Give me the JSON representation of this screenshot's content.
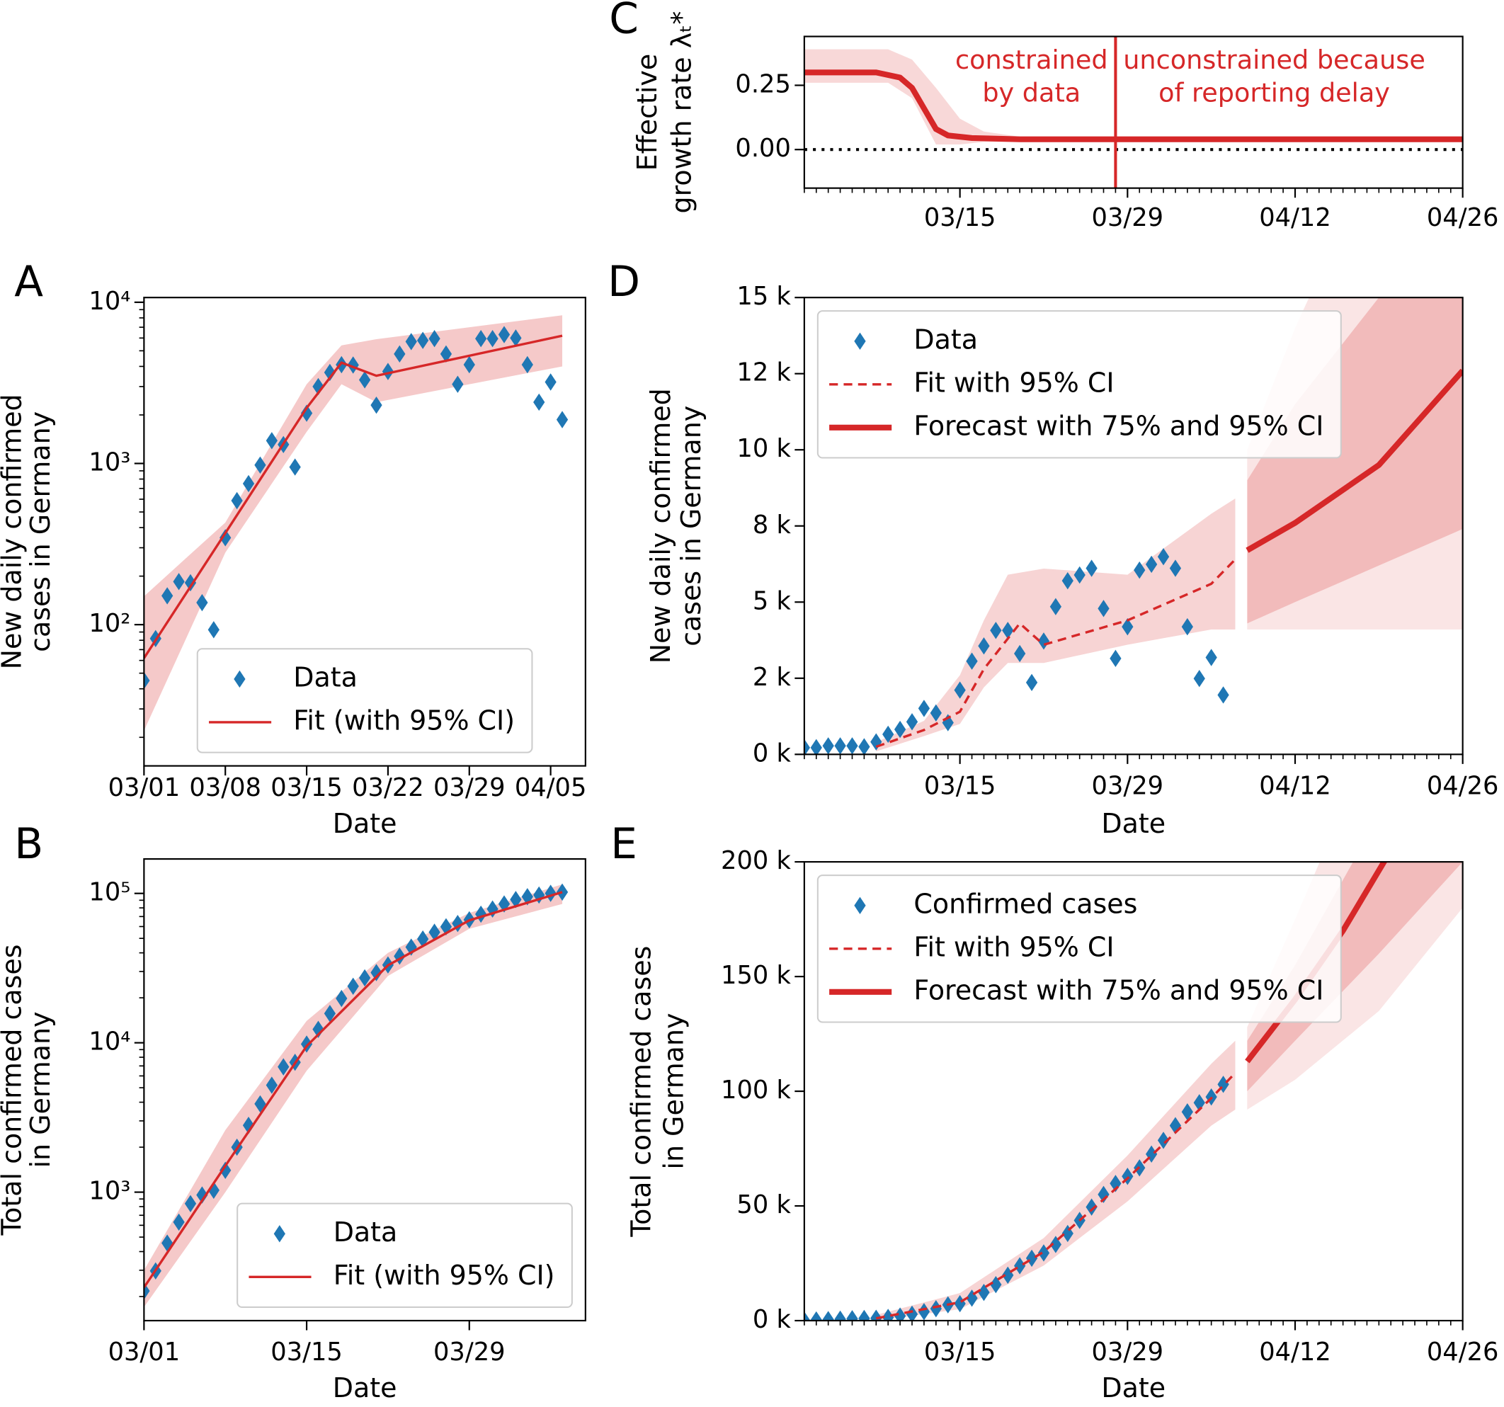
{
  "chart_data": [
    {
      "label": "A",
      "type": "line",
      "ylabel": [
        "New daily confirmed",
        "cases in Germany"
      ],
      "xlabel": "Date",
      "log_y": true,
      "ylim": [
        13.3,
        10700
      ],
      "yticks": [
        {
          "value": 100,
          "label": "10²"
        },
        {
          "value": 1000,
          "label": "10³"
        },
        {
          "value": 10000,
          "label": "10⁴"
        }
      ],
      "xlim": [
        "03/01",
        "04/08"
      ],
      "xticks": [
        "03/01",
        "03/08",
        "03/15",
        "03/22",
        "03/29",
        "04/05"
      ],
      "legend": "lower center",
      "bands": [
        {
          "color": "#d62728",
          "alpha": 0.25,
          "x": [
            "03/01",
            "03/08",
            "03/15",
            "03/18",
            "03/21",
            "04/06"
          ],
          "lower": [
            22,
            280,
            1570,
            3100,
            2400,
            4000
          ],
          "upper": [
            150,
            430,
            3100,
            5400,
            5900,
            8300
          ]
        }
      ],
      "series": [
        {
          "name": "Data",
          "color": "#1f77b4",
          "style": "markers",
          "x": [
            "03/01",
            "03/02",
            "03/03",
            "03/04",
            "03/05",
            "03/06",
            "03/07",
            "03/08",
            "03/09",
            "03/10",
            "03/11",
            "03/12",
            "03/13",
            "03/14",
            "03/15",
            "03/16",
            "03/17",
            "03/18",
            "03/19",
            "03/20",
            "03/21",
            "03/22",
            "03/23",
            "03/24",
            "03/25",
            "03/26",
            "03/27",
            "03/28",
            "03/29",
            "03/30",
            "03/31",
            "04/01",
            "04/02",
            "04/03",
            "04/04",
            "04/05",
            "04/06"
          ],
          "values": [
            45,
            82,
            151,
            185,
            182,
            137,
            93,
            346,
            588,
            750,
            977,
            1385,
            1310,
            950,
            2050,
            3000,
            3670,
            4100,
            4080,
            3300,
            2300,
            3720,
            4780,
            5700,
            5800,
            5950,
            4780,
            3100,
            4100,
            5950,
            5950,
            6300,
            6000,
            4100,
            2400,
            3200,
            1870
          ]
        },
        {
          "name": "Fit (with 95% CI)",
          "color": "#d62728",
          "style": "solid",
          "x": [
            "03/01",
            "03/08",
            "03/15",
            "03/18",
            "03/21",
            "04/06"
          ],
          "values": [
            62,
            370,
            2210,
            4220,
            3500,
            6200
          ]
        }
      ]
    },
    {
      "label": "B",
      "type": "line",
      "ylabel": [
        "Total confirmed cases",
        "in Germany"
      ],
      "xlabel": "Date",
      "log_y": true,
      "ylim": [
        138,
        170000
      ],
      "yticks": [
        {
          "value": 1000,
          "label": "10³"
        },
        {
          "value": 10000,
          "label": "10⁴"
        },
        {
          "value": 100000,
          "label": "10⁵"
        }
      ],
      "xlim": [
        "03/01",
        "04/08"
      ],
      "xticks": [
        "03/01",
        "03/15",
        "03/29"
      ],
      "legend": "lower right",
      "bands": [
        {
          "color": "#d62728",
          "alpha": 0.25,
          "x": [
            "03/01",
            "03/08",
            "03/15",
            "03/22",
            "03/29",
            "04/06"
          ],
          "lower": [
            170,
            1000,
            6500,
            28000,
            58000,
            85000
          ],
          "upper": [
            300,
            2600,
            14000,
            40000,
            74000,
            115000
          ]
        }
      ],
      "series": [
        {
          "name": "Data",
          "color": "#1f77b4",
          "style": "markers",
          "x": [
            "03/01",
            "03/02",
            "03/03",
            "03/04",
            "03/05",
            "03/06",
            "03/07",
            "03/08",
            "03/09",
            "03/10",
            "03/11",
            "03/12",
            "03/13",
            "03/14",
            "03/15",
            "03/16",
            "03/17",
            "03/18",
            "03/19",
            "03/20",
            "03/21",
            "03/22",
            "03/23",
            "03/24",
            "03/25",
            "03/26",
            "03/27",
            "03/28",
            "03/29",
            "03/30",
            "03/31",
            "04/01",
            "04/02",
            "04/03",
            "04/04",
            "04/05",
            "04/06"
          ],
          "values": [
            218,
            297,
            456,
            630,
            838,
            957,
            1030,
            1400,
            2000,
            2800,
            3900,
            5200,
            6900,
            7400,
            9800,
            12300,
            15700,
            19800,
            23900,
            27200,
            29500,
            33200,
            38000,
            43700,
            49500,
            55000,
            59800,
            62900,
            66600,
            72600,
            78600,
            85000,
            91000,
            95000,
            97500,
            100100,
            102000
          ]
        },
        {
          "name": "Fit (with 95% CI)",
          "color": "#d62728",
          "style": "solid",
          "x": [
            "03/01",
            "03/08",
            "03/15",
            "03/22",
            "03/29",
            "04/06"
          ],
          "values": [
            230,
            1500,
            9500,
            33000,
            66000,
            102000
          ]
        }
      ]
    },
    {
      "label": "C",
      "type": "line",
      "ylabel": [
        "Effective",
        "growth rate λₜ*"
      ],
      "ylim": [
        -0.15,
        0.44
      ],
      "yticks": [
        {
          "value": 0,
          "label": "0.00"
        },
        {
          "value": 0.25,
          "label": "0.25"
        }
      ],
      "xlim": [
        "03/02",
        "04/26"
      ],
      "xticks": [
        "03/15",
        "03/29",
        "04/12",
        "04/26"
      ],
      "xminor": true,
      "hline": 0,
      "vline": "03/28",
      "annotations": [
        {
          "lines": [
            "constrained",
            "by data"
          ],
          "side": "left"
        },
        {
          "lines": [
            "unconstrained because",
            "of reporting delay"
          ],
          "side": "right"
        }
      ],
      "bands": [
        {
          "color": "#d62728",
          "alpha": 0.18,
          "x": [
            "03/02",
            "03/09",
            "03/11",
            "03/13",
            "03/15",
            "03/17",
            "03/20",
            "04/26"
          ],
          "lower": [
            0.26,
            0.26,
            0.2,
            0.02,
            0.02,
            0.03,
            0.03,
            0.03
          ],
          "upper": [
            0.39,
            0.39,
            0.35,
            0.24,
            0.12,
            0.07,
            0.05,
            0.05
          ]
        }
      ],
      "series": [
        {
          "color": "#d62728",
          "style": "thick",
          "x": [
            "03/02",
            "03/08",
            "03/10",
            "03/11",
            "03/12",
            "03/13",
            "03/14",
            "03/16",
            "03/20",
            "04/26"
          ],
          "values": [
            0.3,
            0.3,
            0.28,
            0.24,
            0.16,
            0.08,
            0.055,
            0.045,
            0.04,
            0.04
          ]
        }
      ]
    },
    {
      "label": "D",
      "type": "line",
      "ylabel": [
        "New daily confirmed",
        "cases in Germany"
      ],
      "xlabel": "Date",
      "ylim": [
        0,
        15000
      ],
      "yticks": [
        {
          "value": 0,
          "label": "0 k"
        },
        {
          "value": 2500,
          "label": "2 k"
        },
        {
          "value": 5000,
          "label": "5 k"
        },
        {
          "value": 7500,
          "label": "8 k"
        },
        {
          "value": 10000,
          "label": "10 k"
        },
        {
          "value": 12500,
          "label": "12 k"
        },
        {
          "value": 15000,
          "label": "15 k"
        }
      ],
      "xlim": [
        "03/02",
        "04/26"
      ],
      "xticks": [
        "03/15",
        "03/29",
        "04/12",
        "04/26"
      ],
      "xminor": true,
      "legend": "upper left",
      "bands": [
        {
          "color": "#d62728",
          "alpha": 0.2,
          "x": [
            "03/08",
            "03/12",
            "03/15",
            "03/17",
            "03/19",
            "03/22",
            "03/29",
            "04/05",
            "04/07"
          ],
          "lower": [
            100,
            600,
            1000,
            2200,
            3000,
            3000,
            3600,
            4100,
            4100
          ],
          "upper": [
            400,
            1100,
            2600,
            4400,
            5900,
            6100,
            5900,
            7900,
            8400
          ]
        },
        {
          "color": "#d62728",
          "alpha": 0.12,
          "x": [
            "04/08",
            "04/12",
            "04/19",
            "04/26"
          ],
          "lower": [
            4100,
            4100,
            4100,
            4100
          ],
          "upper": [
            10000,
            14000,
            20000,
            25000
          ]
        },
        {
          "color": "#d62728",
          "alpha": 0.22,
          "x": [
            "04/08",
            "04/12",
            "04/19",
            "04/26"
          ],
          "lower": [
            4300,
            5000,
            6200,
            7400
          ],
          "upper": [
            9000,
            11500,
            15000,
            18000
          ]
        }
      ],
      "series": [
        {
          "name": "Data",
          "color": "#1f77b4",
          "style": "markers",
          "x": [
            "03/02",
            "03/03",
            "03/04",
            "03/05",
            "03/06",
            "03/07",
            "03/08",
            "03/09",
            "03/10",
            "03/11",
            "03/12",
            "03/13",
            "03/14",
            "03/15",
            "03/16",
            "03/17",
            "03/18",
            "03/19",
            "03/20",
            "03/21",
            "03/22",
            "03/23",
            "03/24",
            "03/25",
            "03/26",
            "03/27",
            "03/28",
            "03/29",
            "03/30",
            "03/31",
            "04/01",
            "04/02",
            "04/03",
            "04/04",
            "04/05",
            "04/06"
          ],
          "values": [
            220,
            220,
            280,
            280,
            280,
            250,
            410,
            660,
            820,
            1070,
            1510,
            1360,
            1040,
            2110,
            3060,
            3560,
            4070,
            4070,
            3310,
            2360,
            3720,
            4850,
            5700,
            5890,
            6110,
            4790,
            3150,
            4190,
            6050,
            6240,
            6490,
            6110,
            4190,
            2490,
            3180,
            1950
          ]
        },
        {
          "name": "Fit with 95% CI",
          "color": "#d62728",
          "style": "dashed",
          "x": [
            "03/08",
            "03/12",
            "03/15",
            "03/17",
            "03/20",
            "03/22",
            "03/29",
            "04/05",
            "04/07"
          ],
          "values": [
            250,
            800,
            1400,
            2800,
            4300,
            3600,
            4400,
            5600,
            6400
          ]
        },
        {
          "name": "Forecast with 75% and 95% CI",
          "color": "#d62728",
          "style": "thick",
          "x": [
            "04/08",
            "04/12",
            "04/19",
            "04/26"
          ],
          "values": [
            6700,
            7600,
            9500,
            12600
          ]
        }
      ]
    },
    {
      "label": "E",
      "type": "line",
      "ylabel": [
        "Total confirmed cases",
        "in Germany"
      ],
      "xlabel": "Date",
      "ylim": [
        0,
        200000
      ],
      "yticks": [
        {
          "value": 0,
          "label": "0 k"
        },
        {
          "value": 50000,
          "label": "50 k"
        },
        {
          "value": 100000,
          "label": "100 k"
        },
        {
          "value": 150000,
          "label": "150 k"
        },
        {
          "value": 200000,
          "label": "200 k"
        }
      ],
      "xlim": [
        "03/02",
        "04/26"
      ],
      "xticks": [
        "03/15",
        "03/29",
        "04/12",
        "04/26"
      ],
      "xminor": true,
      "legend": "upper left",
      "bands": [
        {
          "color": "#d62728",
          "alpha": 0.2,
          "x": [
            "03/08",
            "03/15",
            "03/22",
            "03/29",
            "04/05",
            "04/07"
          ],
          "lower": [
            0,
            5000,
            24000,
            52000,
            85000,
            92000
          ],
          "upper": [
            2500,
            12000,
            36000,
            72000,
            112000,
            122000
          ]
        },
        {
          "color": "#d62728",
          "alpha": 0.12,
          "x": [
            "04/08",
            "04/12",
            "04/19",
            "04/26"
          ],
          "lower": [
            92000,
            105000,
            135000,
            180000
          ],
          "upper": [
            128000,
            175000,
            260000,
            350000
          ]
        },
        {
          "color": "#d62728",
          "alpha": 0.22,
          "x": [
            "04/08",
            "04/12",
            "04/19",
            "04/26"
          ],
          "lower": [
            100000,
            122000,
            160000,
            200000
          ],
          "upper": [
            122000,
            155000,
            220000,
            280000
          ]
        }
      ],
      "series": [
        {
          "name": "Confirmed cases",
          "color": "#1f77b4",
          "style": "markers",
          "x": [
            "03/02",
            "03/03",
            "03/04",
            "03/05",
            "03/06",
            "03/07",
            "03/08",
            "03/09",
            "03/10",
            "03/11",
            "03/12",
            "03/13",
            "03/14",
            "03/15",
            "03/16",
            "03/17",
            "03/18",
            "03/19",
            "03/20",
            "03/21",
            "03/22",
            "03/23",
            "03/24",
            "03/25",
            "03/26",
            "03/27",
            "03/28",
            "03/29",
            "03/30",
            "03/31",
            "04/01",
            "04/02",
            "04/03",
            "04/04",
            "04/05",
            "04/06"
          ],
          "values": [
            218,
            297,
            456,
            630,
            838,
            957,
            1030,
            1400,
            2000,
            2800,
            3900,
            5200,
            6900,
            7400,
            9800,
            12300,
            15700,
            19800,
            23900,
            27200,
            29500,
            33200,
            38000,
            43700,
            49500,
            55000,
            59800,
            62900,
            66600,
            72600,
            78600,
            85000,
            91000,
            95000,
            97500,
            103000
          ]
        },
        {
          "name": "Fit with 95% CI",
          "color": "#d62728",
          "style": "dashed",
          "x": [
            "03/08",
            "03/15",
            "03/22",
            "03/29",
            "04/05",
            "04/07"
          ],
          "values": [
            1000,
            8000,
            30000,
            62000,
            97000,
            108000
          ]
        },
        {
          "name": "Forecast with 75% and 95% CI",
          "color": "#d62728",
          "style": "thick",
          "x": [
            "04/08",
            "04/12",
            "04/16",
            "04/20"
          ],
          "values": [
            113000,
            140000,
            170000,
            205000
          ]
        }
      ]
    }
  ]
}
